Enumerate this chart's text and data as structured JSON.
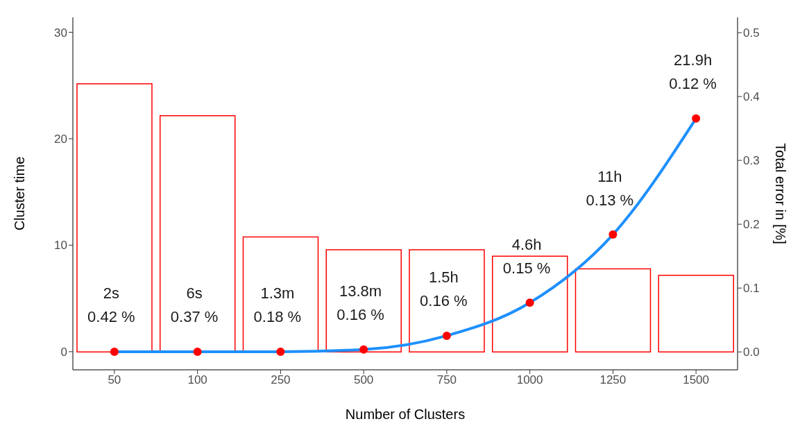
{
  "chart_data": {
    "type": "bar",
    "xlabel": "Number of Clusters",
    "ylabel": "Cluster time",
    "y2label": "Total error in [%]",
    "categories": [
      "50",
      "100",
      "250",
      "500",
      "750",
      "1000",
      "1250",
      "1500"
    ],
    "series": [
      {
        "axis": "y2",
        "color": "#ff0000",
        "values": [
          0.42,
          0.37,
          0.18,
          0.16,
          0.16,
          0.15,
          0.13,
          0.12
        ]
      },
      {
        "type": "line",
        "color": "#1e90ff",
        "marker": "none",
        "values": [
          0,
          0,
          0,
          0.2,
          1.5,
          4.6,
          11,
          21.9
        ]
      },
      {
        "type": "scatter",
        "color": "#ff0000",
        "marker": "circle",
        "values": [
          0,
          0,
          0,
          0.2,
          1.5,
          4.6,
          11,
          21.9
        ]
      }
    ],
    "annotations": [
      "2s",
      "0.42 %",
      "6s",
      "0.37 %",
      "1.3m",
      "0.18 %",
      "13.8m",
      "0.16 %",
      "1.5h",
      "0.16 %",
      "4.6h",
      "0.15 %",
      "11h",
      "0.13 %",
      "21.9h",
      "0.12 %"
    ],
    "ylim": [
      -1.7,
      31.4
    ],
    "yticks": [
      0,
      10,
      20,
      30
    ],
    "y2lim": [
      -0.028,
      0.524
    ],
    "y2ticks": [
      {
        "value": 0,
        "label": "0.0"
      },
      {
        "value": 0.1,
        "label": "0.1"
      },
      {
        "value": 0.2,
        "label": "0.2"
      },
      {
        "value": 0.3,
        "label": "0.3"
      },
      {
        "value": 0.4,
        "label": "0.4"
      },
      {
        "value": 0.5,
        "label": "0.5"
      }
    ],
    "grid": false,
    "legend": false
  }
}
